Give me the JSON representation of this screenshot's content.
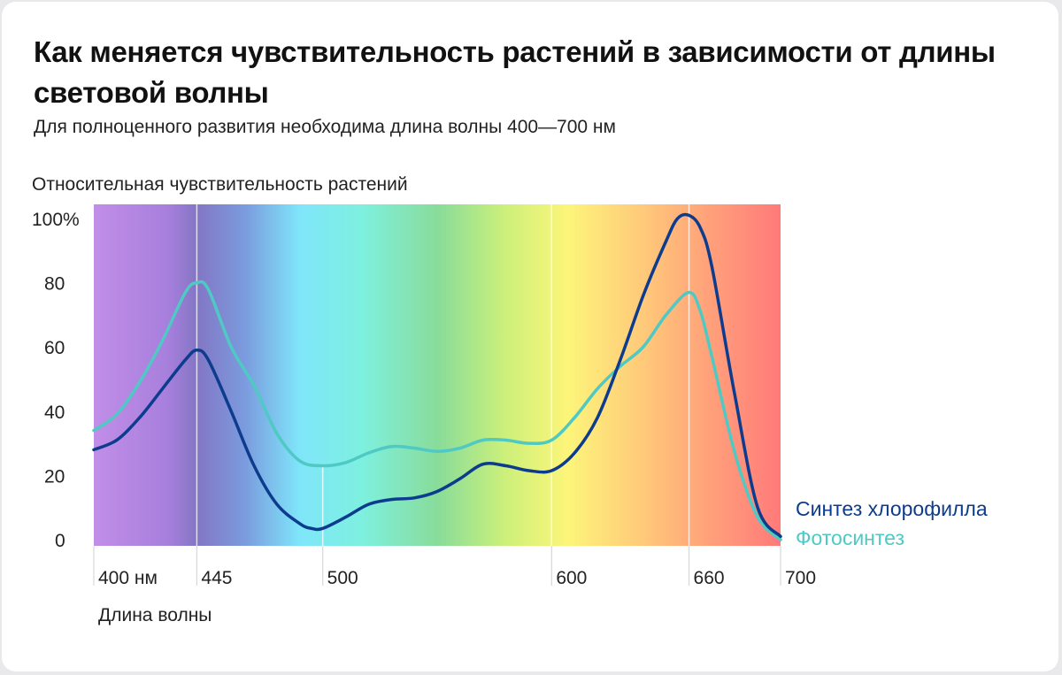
{
  "title": "Как меняется чувствительность растений в зависимости от длины световой волны",
  "subtitle": "Для полноценного развития необходима длина волны 400—700 нм",
  "chart_data": {
    "type": "line",
    "ylabel": "Относительная чувствительность растений",
    "xlabel": "Длина волны",
    "xlim": [
      400,
      700
    ],
    "ylim": [
      0,
      100
    ],
    "x_ticks": [
      {
        "value": 400,
        "label": "400 нм"
      },
      {
        "value": 445,
        "label": "445"
      },
      {
        "value": 500,
        "label": "500"
      },
      {
        "value": 600,
        "label": "600"
      },
      {
        "value": 660,
        "label": "660"
      },
      {
        "value": 700,
        "label": "700"
      }
    ],
    "y_ticks": [
      {
        "value": 0,
        "label": "0"
      },
      {
        "value": 20,
        "label": "20"
      },
      {
        "value": 40,
        "label": "40"
      },
      {
        "value": 60,
        "label": "60"
      },
      {
        "value": 80,
        "label": "80"
      },
      {
        "value": 100,
        "label": "100%"
      }
    ],
    "reference_lines": [
      445,
      500,
      600,
      660
    ],
    "series": [
      {
        "name": "Синтез хлорофилла",
        "color": "#0d3c8e",
        "x": [
          400,
          410,
          420,
          430,
          440,
          445,
          450,
          460,
          470,
          480,
          490,
          495,
          500,
          510,
          520,
          530,
          540,
          550,
          560,
          570,
          580,
          590,
          600,
          610,
          620,
          630,
          640,
          650,
          655,
          660,
          665,
          670,
          680,
          690,
          700
        ],
        "y": [
          28,
          31,
          38,
          47,
          56,
          59,
          56,
          40,
          23,
          11,
          5,
          3.5,
          3.5,
          7,
          11,
          12.5,
          13,
          15,
          19,
          23.5,
          23,
          21.5,
          21.5,
          27,
          38,
          56,
          76,
          93,
          100,
          101,
          97,
          85,
          45,
          10,
          1
        ]
      },
      {
        "name": "Фотосинтез",
        "color": "#4fc9c3",
        "x": [
          400,
          410,
          420,
          430,
          440,
          445,
          450,
          460,
          470,
          480,
          490,
          500,
          510,
          520,
          530,
          540,
          550,
          560,
          570,
          580,
          590,
          600,
          610,
          620,
          630,
          640,
          650,
          660,
          665,
          670,
          680,
          690,
          700
        ],
        "y": [
          34,
          39,
          49,
          62,
          77,
          80,
          78,
          60,
          48,
          33,
          24.5,
          23,
          24,
          27,
          29,
          28.5,
          27.5,
          28.5,
          31,
          31,
          30,
          31,
          38,
          47,
          54,
          60,
          70,
          77,
          71,
          57,
          27,
          7,
          0
        ]
      }
    ]
  }
}
